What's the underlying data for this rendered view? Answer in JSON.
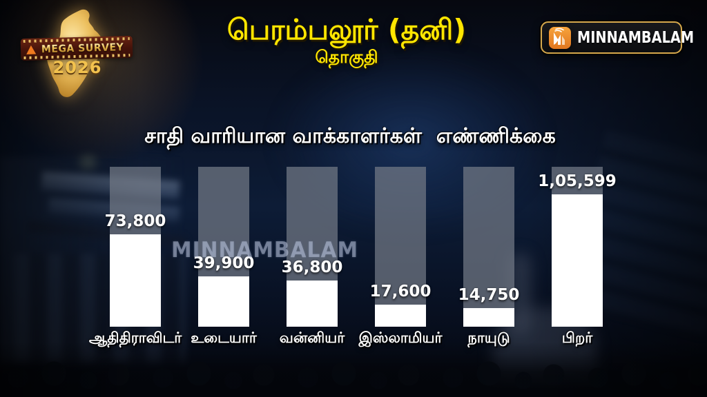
{
  "badge": {
    "title": "MEGA SURVEY",
    "year": "2026"
  },
  "logo": {
    "name": "MINNAMBALAM"
  },
  "header": {
    "title": "பெரம்பலூர் (தனி)",
    "subtitle": "தொகுதி"
  },
  "watermark": "MINNAMBALAM",
  "chart_data": {
    "type": "bar",
    "title": "சாதி வாரியான வாக்காளர்கள்  எண்ணிக்கை",
    "categories": [
      "ஆதிதிராவிடர்",
      "உடையார்",
      "வன்னியர்",
      "இஸ்லாமியர்",
      "நாயுடு",
      "பிறர்"
    ],
    "values": [
      73800,
      39900,
      36800,
      17600,
      14750,
      105599
    ],
    "value_labels": [
      "73,800",
      "39,900",
      "36,800",
      "17,600",
      "14,750",
      "1,05,599"
    ],
    "ylim": [
      0,
      105599
    ],
    "orientation": "vertical",
    "grid": false,
    "legend": "none",
    "bar_fill_color": "#ffffff",
    "bar_track_color": "rgba(115,122,135,0.72)"
  },
  "colors": {
    "title_yellow": "#ffe600",
    "heading_white": "#ffffff",
    "background_navy": "#0d1c36",
    "gold_accent": "#e9bc5a",
    "logo_orange": "#ef8b2d",
    "bar_fill": "#ffffff",
    "bar_track": "#565c66"
  }
}
